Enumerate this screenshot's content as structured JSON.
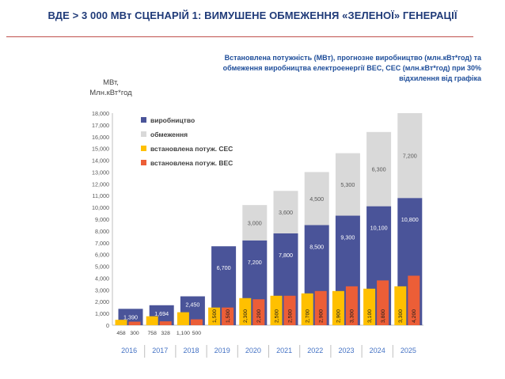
{
  "title": "ВДЕ > 3 000 МВт СЦЕНАРІЙ 1: ВИМУШЕНЕ ОБМЕЖЕННЯ «ЗЕЛЕНОЇ» ГЕНЕРАЦІЇ",
  "subtitle_lines": [
    "Встановлена потужність (МВт), прогнозне виробництво (млн.кВт*год) та",
    "обмеження виробництва електроенергії ВЕС, СЕС (млн.кВт*год) при 30%",
    "відхилення від графіка"
  ],
  "ylabel_lines": [
    "МВт,",
    "Млн.кВт*год"
  ],
  "colors": {
    "production": "#4a5499",
    "curtailment": "#d9d9d9",
    "solar": "#ffc000",
    "wind": "#ec5e37",
    "title": "#1f3a78",
    "year_text": "#4472c4"
  },
  "chart_data": {
    "type": "bar",
    "title": "Встановлена потужність (МВт), прогнозне виробництво (млн.кВт*год) та обмеження виробництва електроенергії ВЕС, СЕС (млн.кВт*год) при 30% відхилення від графіка",
    "ylabel": "МВт, Млн.кВт*год",
    "ylim": [
      0,
      18000
    ],
    "ytick_labels": [
      "0",
      "1,000",
      "2,000",
      "3,000",
      "4,000",
      "5,000",
      "6,000",
      "7,000",
      "8,000",
      "9,000",
      "10,000",
      "11,000",
      "12,000",
      "13,000",
      "14,000",
      "15,000",
      "16,000",
      "17,000",
      "18,000"
    ],
    "categories": [
      "2016",
      "2017",
      "2018",
      "2019",
      "2020",
      "2021",
      "2022",
      "2023",
      "2024",
      "2025"
    ],
    "legend": [
      "виробництво",
      "обмеження",
      "встановлена потуж. СЕС",
      "встановлена потуж. ВЕС"
    ],
    "legend_position": "top-left",
    "series": [
      {
        "name": "виробництво",
        "values": [
          1390,
          1694,
          2450,
          6700,
          7200,
          7800,
          8500,
          9300,
          10100,
          10800
        ],
        "labels": [
          "1,390",
          "1,694",
          "2,450",
          "6,700",
          "7,200",
          "7,800",
          "8,500",
          "9,300",
          "10,100",
          "10,800"
        ]
      },
      {
        "name": "обмеження",
        "values": [
          0,
          0,
          0,
          0,
          3000,
          3600,
          4500,
          5300,
          6300,
          7200
        ],
        "labels": [
          "",
          "",
          "",
          "",
          "3,000",
          "3,600",
          "4,500",
          "5,300",
          "6,300",
          "7,200"
        ]
      },
      {
        "name": "встановлена потуж. СЕС",
        "values": [
          458,
          758,
          1100,
          1500,
          2300,
          2500,
          2700,
          2900,
          3100,
          3300
        ],
        "labels": [
          "458",
          "758",
          "1,100",
          "1,500",
          "2,300",
          "2,500",
          "2,700",
          "2,900",
          "3,100",
          "3,300"
        ]
      },
      {
        "name": "встановлена потуж. ВЕС",
        "values": [
          300,
          328,
          500,
          1500,
          2200,
          2500,
          2900,
          3300,
          3800,
          4200
        ],
        "labels": [
          "300",
          "328",
          "500",
          "1,500",
          "2,200",
          "2,500",
          "2,900",
          "3,300",
          "3,800",
          "4,200"
        ]
      }
    ]
  }
}
